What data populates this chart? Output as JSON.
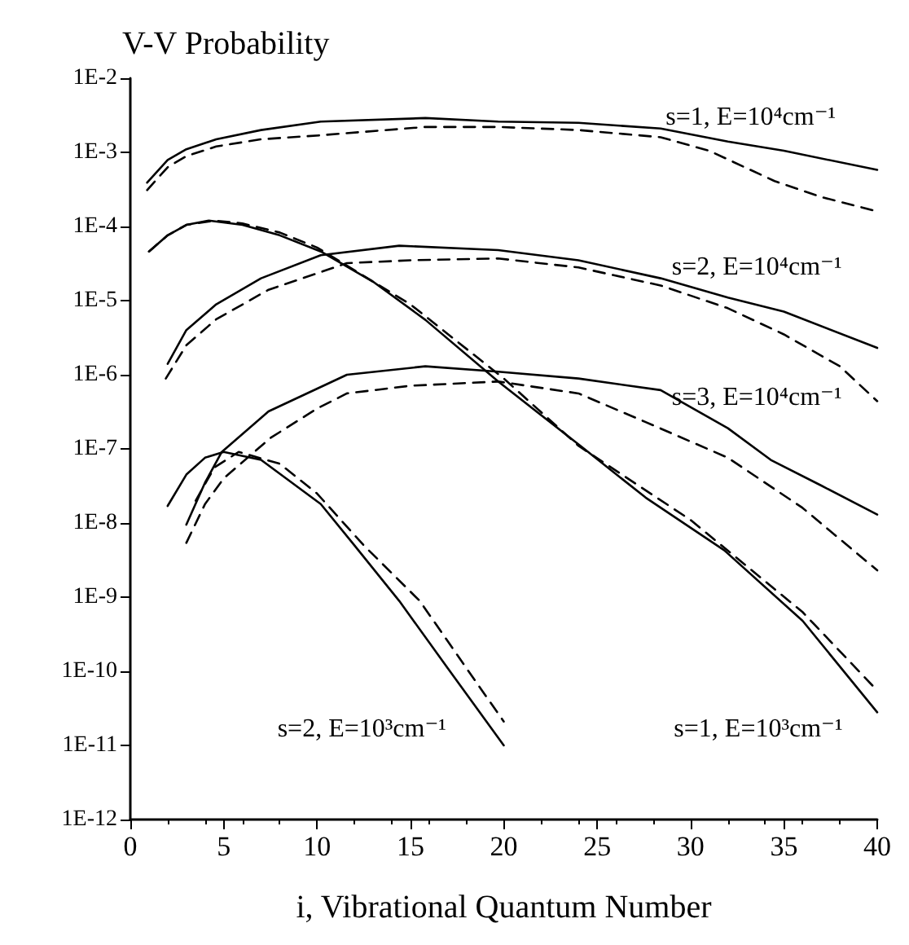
{
  "chart_data": {
    "type": "line",
    "title": "V-V Probability",
    "xlabel": "i, Vibrational Quantum Number",
    "log": "y",
    "grid": false,
    "marker": "none",
    "xlim": [
      0,
      40
    ],
    "xticks": [
      0,
      5,
      10,
      15,
      20,
      25,
      30,
      35,
      40
    ],
    "ylim": [
      1e-12,
      0.01
    ],
    "yticks": [
      {
        "value": 0.01,
        "label": "1E-2"
      },
      {
        "value": 0.001,
        "label": "1E-3"
      },
      {
        "value": 0.0001,
        "label": "1E-4"
      },
      {
        "value": 1e-05,
        "label": "1E-5"
      },
      {
        "value": 1e-06,
        "label": "1E-6"
      },
      {
        "value": 1e-07,
        "label": "1E-7"
      },
      {
        "value": 1e-08,
        "label": "1E-8"
      },
      {
        "value": 1e-09,
        "label": "1E-9"
      },
      {
        "value": 1e-10,
        "label": "1E-10"
      },
      {
        "value": 1e-11,
        "label": "1E-11"
      },
      {
        "value": 1e-12,
        "label": "1E-12"
      }
    ],
    "series": [
      {
        "color": "#000000",
        "line_style": "solid",
        "x": [
          0.9,
          2,
          3,
          4.6,
          7,
          10.2,
          15.8,
          19.7,
          24,
          28.4,
          32,
          35,
          40
        ],
        "values": [
          0.00039,
          0.00079,
          0.0011,
          0.0015,
          0.002,
          0.0026,
          0.0029,
          0.0026,
          0.0025,
          0.0021,
          0.0014,
          0.00105,
          0.00058
        ]
      },
      {
        "color": "#000000",
        "line_style": "dashed",
        "x": [
          0.9,
          2,
          3,
          4.6,
          7,
          10.2,
          15.8,
          19.7,
          24,
          28.4,
          31,
          34.5,
          37,
          40
        ],
        "values": [
          0.00031,
          0.00063,
          0.00089,
          0.0012,
          0.0015,
          0.0017,
          0.0022,
          0.0022,
          0.002,
          0.0016,
          0.00105,
          0.00041,
          0.00025,
          0.00016
        ]
      },
      {
        "color": "#000000",
        "line_style": "solid",
        "x": [
          2,
          3,
          4.6,
          7,
          10.2,
          14.4,
          19.7,
          24,
          28.4,
          32,
          35,
          40
        ],
        "values": [
          1.4e-06,
          4e-06,
          8.9e-06,
          2e-05,
          4.1e-05,
          5.5e-05,
          4.8e-05,
          3.5e-05,
          2e-05,
          1.1e-05,
          7.1e-06,
          2.3e-06
        ]
      },
      {
        "color": "#000000",
        "line_style": "dashed",
        "x": [
          1.9,
          3,
          4.6,
          7.4,
          11.6,
          15,
          19.7,
          24,
          28.4,
          32,
          35,
          38,
          40
        ],
        "values": [
          8.9e-07,
          2.5e-06,
          5.6e-06,
          1.4e-05,
          3.2e-05,
          3.5e-05,
          3.7e-05,
          2.8e-05,
          1.6e-05,
          7.9e-06,
          3.5e-06,
          1.3e-06,
          4.4e-07
        ]
      },
      {
        "color": "#000000",
        "line_style": "solid",
        "x": [
          3,
          4,
          4.9,
          7.4,
          11.6,
          15.8,
          19.7,
          24,
          28.4,
          32,
          34.3,
          37,
          40
        ],
        "values": [
          9.5e-09,
          3.5e-08,
          9.1e-08,
          3.2e-07,
          1e-06,
          1.3e-06,
          1.1e-06,
          8.9e-07,
          6.2e-07,
          1.9e-07,
          7.1e-08,
          3.2e-08,
          1.3e-08
        ]
      },
      {
        "color": "#000000",
        "line_style": "dashed",
        "x": [
          3,
          4,
          5,
          7.5,
          10,
          11.6,
          15,
          19.7,
          24,
          27.6,
          32,
          36,
          40
        ],
        "values": [
          5.4e-09,
          1.8e-08,
          4e-08,
          1.4e-07,
          3.5e-07,
          5.6e-07,
          7.1e-07,
          8.1e-07,
          5.6e-07,
          2.3e-07,
          7.6e-08,
          1.6e-08,
          2.3e-09
        ]
      },
      {
        "color": "#000000",
        "line_style": "solid",
        "x": [
          2,
          3,
          4,
          5,
          7,
          10.2,
          12,
          14.4,
          17,
          20
        ],
        "values": [
          1.7e-08,
          4.5e-08,
          7.6e-08,
          9.1e-08,
          7.1e-08,
          1.8e-08,
          5e-09,
          8.9e-10,
          1.1e-10,
          1e-11
        ]
      },
      {
        "color": "#000000",
        "line_style": "dashed",
        "x": [
          3.5,
          4.5,
          5.8,
          8,
          10,
          12.5,
          15.5,
          18,
          20
        ],
        "values": [
          2e-08,
          5.6e-08,
          9.1e-08,
          6.3e-08,
          2.5e-08,
          5e-09,
          8.9e-10,
          1.1e-10,
          2.1e-11
        ]
      },
      {
        "color": "#000000",
        "line_style": "solid",
        "x": [
          1,
          2,
          3,
          4.2,
          6,
          8,
          10.2,
          13,
          15.8,
          19.7,
          24.2,
          27.6,
          31.8,
          36,
          40
        ],
        "values": [
          4.6e-05,
          7.6e-05,
          0.000105,
          0.00012,
          0.000105,
          7.6e-05,
          4.6e-05,
          1.8e-05,
          5.5e-06,
          8.1e-07,
          1.05e-07,
          2.2e-08,
          4.3e-09,
          4.8e-10,
          2.8e-11
        ]
      },
      {
        "color": "#000000",
        "line_style": "dashed",
        "x": [
          1,
          2,
          3,
          4.5,
          6,
          8,
          10,
          15,
          20,
          24,
          30,
          36,
          40
        ],
        "values": [
          4.6e-05,
          7.6e-05,
          0.000105,
          0.00012,
          0.00011,
          8.3e-05,
          5.2e-05,
          8.9e-06,
          8.9e-07,
          1.1e-07,
          1.1e-08,
          6.3e-10,
          5.5e-11
        ]
      }
    ],
    "annotations": [
      "s=1, E=10⁴cm⁻¹",
      "s=2, E=10⁴cm⁻¹",
      "s=3, E=10⁴cm⁻¹",
      "s=2, E=10³cm⁻¹",
      "s=1, E=10³cm⁻¹"
    ]
  }
}
